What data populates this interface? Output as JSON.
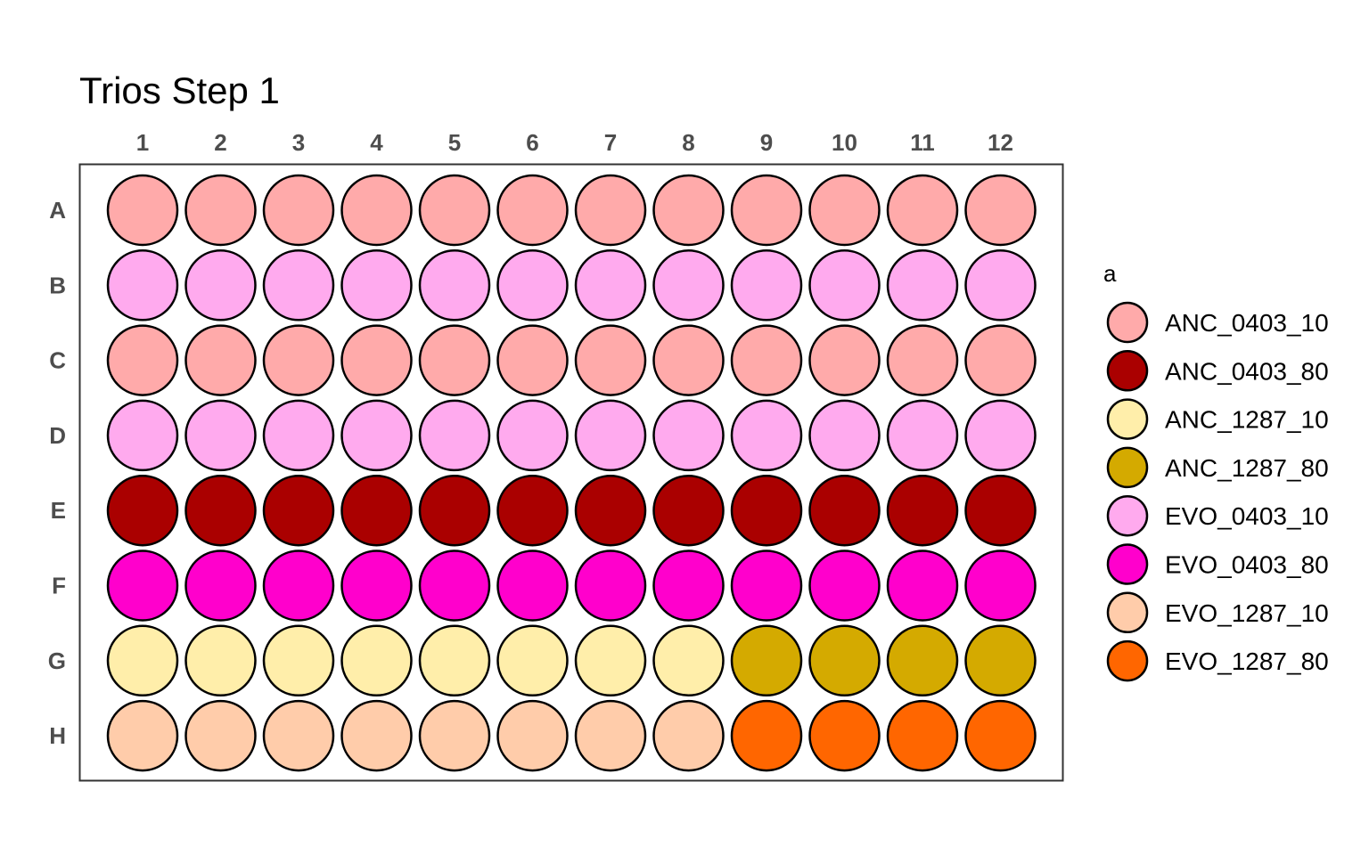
{
  "chart_data": {
    "type": "heatmap",
    "title": "Trios Step 1",
    "columns": [
      "1",
      "2",
      "3",
      "4",
      "5",
      "6",
      "7",
      "8",
      "9",
      "10",
      "11",
      "12"
    ],
    "rows": [
      "A",
      "B",
      "C",
      "D",
      "E",
      "F",
      "G",
      "H"
    ],
    "legend": {
      "title": "a",
      "position": "right",
      "entries": [
        {
          "label": "ANC_0403_10",
          "color": "#FFAAAA"
        },
        {
          "label": "ANC_0403_80",
          "color": "#AA0000"
        },
        {
          "label": "ANC_1287_10",
          "color": "#FFEEAA"
        },
        {
          "label": "ANC_1287_80",
          "color": "#D4AA00"
        },
        {
          "label": "EVO_0403_10",
          "color": "#FFAAEE"
        },
        {
          "label": "EVO_0403_80",
          "color": "#FF00CC"
        },
        {
          "label": "EVO_1287_10",
          "color": "#FFCCAA"
        },
        {
          "label": "EVO_1287_80",
          "color": "#FF6600"
        }
      ]
    },
    "wells": [
      [
        "ANC_0403_10",
        "ANC_0403_10",
        "ANC_0403_10",
        "ANC_0403_10",
        "ANC_0403_10",
        "ANC_0403_10",
        "ANC_0403_10",
        "ANC_0403_10",
        "ANC_0403_10",
        "ANC_0403_10",
        "ANC_0403_10",
        "ANC_0403_10"
      ],
      [
        "EVO_0403_10",
        "EVO_0403_10",
        "EVO_0403_10",
        "EVO_0403_10",
        "EVO_0403_10",
        "EVO_0403_10",
        "EVO_0403_10",
        "EVO_0403_10",
        "EVO_0403_10",
        "EVO_0403_10",
        "EVO_0403_10",
        "EVO_0403_10"
      ],
      [
        "ANC_0403_10",
        "ANC_0403_10",
        "ANC_0403_10",
        "ANC_0403_10",
        "ANC_0403_10",
        "ANC_0403_10",
        "ANC_0403_10",
        "ANC_0403_10",
        "ANC_0403_10",
        "ANC_0403_10",
        "ANC_0403_10",
        "ANC_0403_10"
      ],
      [
        "EVO_0403_10",
        "EVO_0403_10",
        "EVO_0403_10",
        "EVO_0403_10",
        "EVO_0403_10",
        "EVO_0403_10",
        "EVO_0403_10",
        "EVO_0403_10",
        "EVO_0403_10",
        "EVO_0403_10",
        "EVO_0403_10",
        "EVO_0403_10"
      ],
      [
        "ANC_0403_80",
        "ANC_0403_80",
        "ANC_0403_80",
        "ANC_0403_80",
        "ANC_0403_80",
        "ANC_0403_80",
        "ANC_0403_80",
        "ANC_0403_80",
        "ANC_0403_80",
        "ANC_0403_80",
        "ANC_0403_80",
        "ANC_0403_80"
      ],
      [
        "EVO_0403_80",
        "EVO_0403_80",
        "EVO_0403_80",
        "EVO_0403_80",
        "EVO_0403_80",
        "EVO_0403_80",
        "EVO_0403_80",
        "EVO_0403_80",
        "EVO_0403_80",
        "EVO_0403_80",
        "EVO_0403_80",
        "EVO_0403_80"
      ],
      [
        "ANC_1287_10",
        "ANC_1287_10",
        "ANC_1287_10",
        "ANC_1287_10",
        "ANC_1287_10",
        "ANC_1287_10",
        "ANC_1287_10",
        "ANC_1287_10",
        "ANC_1287_80",
        "ANC_1287_80",
        "ANC_1287_80",
        "ANC_1287_80"
      ],
      [
        "EVO_1287_10",
        "EVO_1287_10",
        "EVO_1287_10",
        "EVO_1287_10",
        "EVO_1287_10",
        "EVO_1287_10",
        "EVO_1287_10",
        "EVO_1287_10",
        "EVO_1287_80",
        "EVO_1287_80",
        "EVO_1287_80",
        "EVO_1287_80"
      ]
    ]
  }
}
